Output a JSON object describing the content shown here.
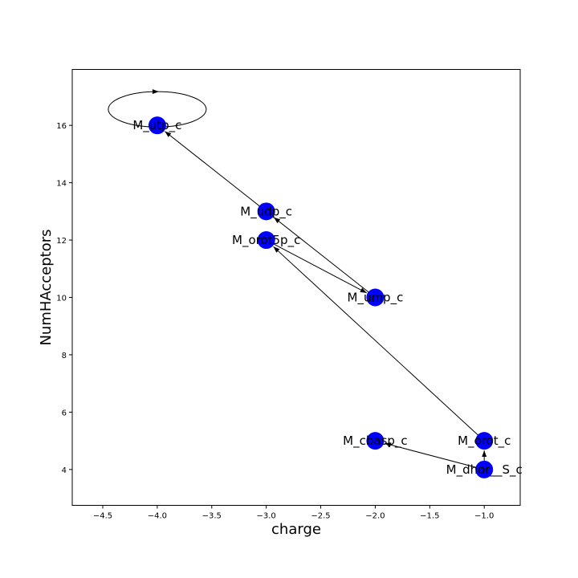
{
  "chart_data": {
    "type": "scatter",
    "subtype": "network-graph",
    "xlabel": "charge",
    "ylabel": "NumHAcceptors",
    "xlim": [
      -4.78,
      -0.67
    ],
    "ylim": [
      2.75,
      17.95
    ],
    "grid": false,
    "xticks": [
      -4.5,
      -4.0,
      -3.5,
      -3.0,
      -2.5,
      -2.0,
      -1.5,
      -1.0
    ],
    "xtick_labels": [
      "−4.5",
      "−4.0",
      "−3.5",
      "−3.0",
      "−2.5",
      "−2.0",
      "−1.5",
      "−1.0"
    ],
    "yticks": [
      4,
      6,
      8,
      10,
      12,
      14,
      16
    ],
    "ytick_labels": [
      "4",
      "6",
      "8",
      "10",
      "12",
      "14",
      "16"
    ],
    "node_color": "#0000ff",
    "nodes": [
      {
        "id": "M_utp_c",
        "label": "M_utp_c",
        "x": -4.0,
        "y": 16
      },
      {
        "id": "M_udp_c",
        "label": "M_udp_c",
        "x": -3.0,
        "y": 13
      },
      {
        "id": "M_orot5p_c",
        "label": "M_orot5p_c",
        "x": -3.0,
        "y": 12
      },
      {
        "id": "M_ump_c",
        "label": "M_ump_c",
        "x": -2.0,
        "y": 10
      },
      {
        "id": "M_cbasp_c",
        "label": "M_cbasp_c",
        "x": -2.0,
        "y": 5
      },
      {
        "id": "M_orot_c",
        "label": "M_orot_c",
        "x": -1.0,
        "y": 5
      },
      {
        "id": "M_dhor__S_c",
        "label": "M_dhor__S_c",
        "x": -1.0,
        "y": 4
      }
    ],
    "edges": [
      {
        "source": "M_udp_c",
        "target": "M_utp_c"
      },
      {
        "source": "M_ump_c",
        "target": "M_udp_c"
      },
      {
        "source": "M_orot5p_c",
        "target": "M_ump_c"
      },
      {
        "source": "M_orot_c",
        "target": "M_orot5p_c"
      },
      {
        "source": "M_dhor__S_c",
        "target": "M_orot_c"
      },
      {
        "source": "M_dhor__S_c",
        "target": "M_cbasp_c"
      },
      {
        "source": "M_utp_c",
        "target": "M_utp_c",
        "self_loop": true
      }
    ]
  }
}
